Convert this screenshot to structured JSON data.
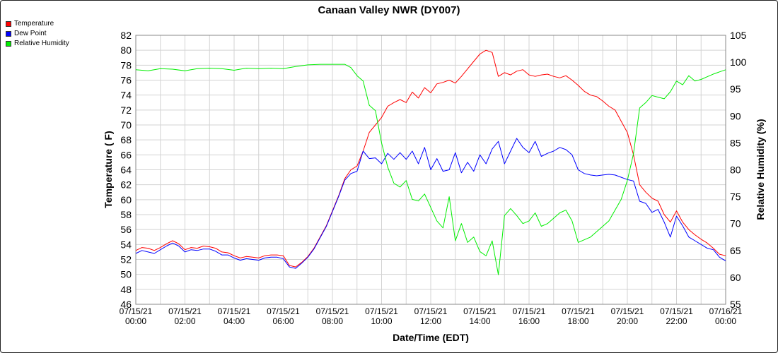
{
  "chart_data": {
    "type": "line",
    "title": "Canaan Valley NWR (DY007)",
    "xlabel": "Date/Time (EDT)",
    "ylabel_left": "Temperature ( F)",
    "ylabel_right": "Relative Humidity (%)",
    "ylim_left": [
      46,
      82
    ],
    "ylim_right": [
      55,
      105
    ],
    "xlim_hours": [
      0,
      24
    ],
    "grid": true,
    "legend_position": "top-left",
    "x_ticks": [
      {
        "hour": 0,
        "date": "07/15/21",
        "time": "00:00"
      },
      {
        "hour": 2,
        "date": "07/15/21",
        "time": "02:00"
      },
      {
        "hour": 4,
        "date": "07/15/21",
        "time": "04:00"
      },
      {
        "hour": 6,
        "date": "07/15/21",
        "time": "06:00"
      },
      {
        "hour": 8,
        "date": "07/15/21",
        "time": "08:00"
      },
      {
        "hour": 10,
        "date": "07/15/21",
        "time": "10:00"
      },
      {
        "hour": 12,
        "date": "07/15/21",
        "time": "12:00"
      },
      {
        "hour": 14,
        "date": "07/15/21",
        "time": "14:00"
      },
      {
        "hour": 16,
        "date": "07/15/21",
        "time": "16:00"
      },
      {
        "hour": 18,
        "date": "07/15/21",
        "time": "18:00"
      },
      {
        "hour": 20,
        "date": "07/15/21",
        "time": "20:00"
      },
      {
        "hour": 22,
        "date": "07/15/21",
        "time": "22:00"
      },
      {
        "hour": 24,
        "date": "07/16/21",
        "time": "00:00"
      }
    ],
    "y_ticks_left": [
      46,
      48,
      50,
      52,
      54,
      56,
      58,
      60,
      62,
      64,
      66,
      68,
      70,
      72,
      74,
      76,
      78,
      80,
      82
    ],
    "y_ticks_right": [
      55,
      60,
      65,
      70,
      75,
      80,
      85,
      90,
      95,
      100,
      105
    ],
    "series": [
      {
        "name": "Temperature",
        "color": "#ff0000",
        "axis": "left",
        "points": [
          [
            0,
            53.2
          ],
          [
            0.25,
            53.6
          ],
          [
            0.5,
            53.5
          ],
          [
            0.75,
            53.2
          ],
          [
            1.0,
            53.6
          ],
          [
            1.25,
            54.1
          ],
          [
            1.5,
            54.5
          ],
          [
            1.75,
            54.1
          ],
          [
            2.0,
            53.3
          ],
          [
            2.25,
            53.6
          ],
          [
            2.5,
            53.5
          ],
          [
            2.75,
            53.8
          ],
          [
            3.0,
            53.7
          ],
          [
            3.25,
            53.5
          ],
          [
            3.5,
            53.0
          ],
          [
            3.75,
            52.9
          ],
          [
            4.0,
            52.5
          ],
          [
            4.25,
            52.2
          ],
          [
            4.5,
            52.4
          ],
          [
            4.75,
            52.3
          ],
          [
            5.0,
            52.2
          ],
          [
            5.25,
            52.5
          ],
          [
            5.5,
            52.6
          ],
          [
            5.75,
            52.6
          ],
          [
            6.0,
            52.5
          ],
          [
            6.25,
            51.2
          ],
          [
            6.5,
            51.0
          ],
          [
            6.75,
            51.6
          ],
          [
            7.0,
            52.4
          ],
          [
            7.25,
            53.5
          ],
          [
            7.5,
            55.0
          ],
          [
            7.75,
            56.5
          ],
          [
            8.0,
            58.5
          ],
          [
            8.25,
            60.5
          ],
          [
            8.5,
            62.8
          ],
          [
            8.75,
            64.0
          ],
          [
            9.0,
            64.5
          ],
          [
            9.25,
            66.5
          ],
          [
            9.5,
            69.0
          ],
          [
            9.75,
            70.0
          ],
          [
            10.0,
            71.0
          ],
          [
            10.25,
            72.5
          ],
          [
            10.5,
            73.0
          ],
          [
            10.75,
            73.4
          ],
          [
            11.0,
            73.0
          ],
          [
            11.25,
            74.4
          ],
          [
            11.5,
            73.6
          ],
          [
            11.75,
            75.0
          ],
          [
            12.0,
            74.3
          ],
          [
            12.25,
            75.5
          ],
          [
            12.5,
            75.7
          ],
          [
            12.75,
            76.0
          ],
          [
            13.0,
            75.6
          ],
          [
            13.25,
            76.5
          ],
          [
            13.5,
            77.5
          ],
          [
            13.75,
            78.5
          ],
          [
            14.0,
            79.5
          ],
          [
            14.25,
            80.0
          ],
          [
            14.5,
            79.7
          ],
          [
            14.75,
            76.5
          ],
          [
            15.0,
            77.0
          ],
          [
            15.25,
            76.7
          ],
          [
            15.5,
            77.2
          ],
          [
            15.75,
            77.4
          ],
          [
            16.0,
            76.7
          ],
          [
            16.25,
            76.5
          ],
          [
            16.5,
            76.7
          ],
          [
            16.75,
            76.8
          ],
          [
            17.0,
            76.5
          ],
          [
            17.25,
            76.3
          ],
          [
            17.5,
            76.6
          ],
          [
            17.75,
            76.0
          ],
          [
            18.0,
            75.3
          ],
          [
            18.25,
            74.5
          ],
          [
            18.5,
            74.0
          ],
          [
            18.75,
            73.8
          ],
          [
            19.0,
            73.2
          ],
          [
            19.25,
            72.5
          ],
          [
            19.5,
            72.0
          ],
          [
            19.75,
            70.5
          ],
          [
            20.0,
            69.0
          ],
          [
            20.25,
            66.0
          ],
          [
            20.5,
            62.0
          ],
          [
            20.75,
            61.0
          ],
          [
            21.0,
            60.2
          ],
          [
            21.25,
            59.8
          ],
          [
            21.5,
            58.0
          ],
          [
            21.75,
            57.0
          ],
          [
            22.0,
            58.5
          ],
          [
            22.25,
            57.0
          ],
          [
            22.5,
            56.0
          ],
          [
            22.75,
            55.3
          ],
          [
            23.0,
            54.7
          ],
          [
            23.25,
            54.2
          ],
          [
            23.5,
            53.5
          ],
          [
            23.75,
            52.7
          ],
          [
            24.0,
            52.5
          ]
        ]
      },
      {
        "name": "Dew Point",
        "color": "#0000ff",
        "axis": "left",
        "points": [
          [
            0,
            52.8
          ],
          [
            0.25,
            53.2
          ],
          [
            0.5,
            53.0
          ],
          [
            0.75,
            52.8
          ],
          [
            1.0,
            53.3
          ],
          [
            1.25,
            53.8
          ],
          [
            1.5,
            54.2
          ],
          [
            1.75,
            53.8
          ],
          [
            2.0,
            53.0
          ],
          [
            2.25,
            53.3
          ],
          [
            2.5,
            53.2
          ],
          [
            2.75,
            53.4
          ],
          [
            3.0,
            53.4
          ],
          [
            3.25,
            53.1
          ],
          [
            3.5,
            52.6
          ],
          [
            3.75,
            52.6
          ],
          [
            4.0,
            52.2
          ],
          [
            4.25,
            51.9
          ],
          [
            4.5,
            52.1
          ],
          [
            4.75,
            52.0
          ],
          [
            5.0,
            51.9
          ],
          [
            5.25,
            52.2
          ],
          [
            5.5,
            52.3
          ],
          [
            5.75,
            52.3
          ],
          [
            6.0,
            52.1
          ],
          [
            6.25,
            51.0
          ],
          [
            6.5,
            50.8
          ],
          [
            6.75,
            51.5
          ],
          [
            7.0,
            52.3
          ],
          [
            7.25,
            53.4
          ],
          [
            7.5,
            54.9
          ],
          [
            7.75,
            56.4
          ],
          [
            8.0,
            58.4
          ],
          [
            8.25,
            60.4
          ],
          [
            8.5,
            62.6
          ],
          [
            8.75,
            63.5
          ],
          [
            9.0,
            63.8
          ],
          [
            9.25,
            66.5
          ],
          [
            9.5,
            65.5
          ],
          [
            9.75,
            65.6
          ],
          [
            10.0,
            64.8
          ],
          [
            10.25,
            66.2
          ],
          [
            10.5,
            65.4
          ],
          [
            10.75,
            66.3
          ],
          [
            11.0,
            65.4
          ],
          [
            11.25,
            66.5
          ],
          [
            11.5,
            64.8
          ],
          [
            11.75,
            67.0
          ],
          [
            12.0,
            64.0
          ],
          [
            12.25,
            65.5
          ],
          [
            12.5,
            63.8
          ],
          [
            12.75,
            64.0
          ],
          [
            13.0,
            66.3
          ],
          [
            13.25,
            63.6
          ],
          [
            13.5,
            65.0
          ],
          [
            13.75,
            63.8
          ],
          [
            14.0,
            66.0
          ],
          [
            14.25,
            64.8
          ],
          [
            14.5,
            66.8
          ],
          [
            14.75,
            67.8
          ],
          [
            15.0,
            64.8
          ],
          [
            15.25,
            66.5
          ],
          [
            15.5,
            68.2
          ],
          [
            15.75,
            67.0
          ],
          [
            16.0,
            66.3
          ],
          [
            16.25,
            67.8
          ],
          [
            16.5,
            65.8
          ],
          [
            16.75,
            66.2
          ],
          [
            17.0,
            66.5
          ],
          [
            17.25,
            67.0
          ],
          [
            17.5,
            66.7
          ],
          [
            17.75,
            66.0
          ],
          [
            18.0,
            64.0
          ],
          [
            18.25,
            63.5
          ],
          [
            18.5,
            63.3
          ],
          [
            18.75,
            63.2
          ],
          [
            19.0,
            63.3
          ],
          [
            19.25,
            63.4
          ],
          [
            19.5,
            63.3
          ],
          [
            19.75,
            63.0
          ],
          [
            20.0,
            62.7
          ],
          [
            20.25,
            62.5
          ],
          [
            20.5,
            59.8
          ],
          [
            20.75,
            59.5
          ],
          [
            21.0,
            58.3
          ],
          [
            21.25,
            58.7
          ],
          [
            21.5,
            57.0
          ],
          [
            21.75,
            55.0
          ],
          [
            22.0,
            57.8
          ],
          [
            22.25,
            56.5
          ],
          [
            22.5,
            55.0
          ],
          [
            22.75,
            54.5
          ],
          [
            23.0,
            54.0
          ],
          [
            23.25,
            53.5
          ],
          [
            23.5,
            53.3
          ],
          [
            23.75,
            52.3
          ],
          [
            24.0,
            51.8
          ]
        ]
      },
      {
        "name": "Relative Humidity",
        "color": "#00ee00",
        "axis": "right",
        "points": [
          [
            0,
            98.6
          ],
          [
            0.5,
            98.4
          ],
          [
            1.0,
            98.8
          ],
          [
            1.5,
            98.7
          ],
          [
            2.0,
            98.4
          ],
          [
            2.5,
            98.8
          ],
          [
            3.0,
            98.9
          ],
          [
            3.5,
            98.8
          ],
          [
            4.0,
            98.5
          ],
          [
            4.5,
            98.9
          ],
          [
            5.0,
            98.8
          ],
          [
            5.5,
            98.9
          ],
          [
            6.0,
            98.8
          ],
          [
            6.5,
            99.2
          ],
          [
            7.0,
            99.5
          ],
          [
            7.5,
            99.6
          ],
          [
            8.0,
            99.6
          ],
          [
            8.5,
            99.6
          ],
          [
            8.75,
            99.0
          ],
          [
            9.0,
            97.5
          ],
          [
            9.25,
            96.5
          ],
          [
            9.5,
            92.0
          ],
          [
            9.75,
            91.0
          ],
          [
            10.0,
            85.0
          ],
          [
            10.25,
            80.5
          ],
          [
            10.5,
            77.5
          ],
          [
            10.75,
            76.8
          ],
          [
            11.0,
            78.0
          ],
          [
            11.25,
            74.5
          ],
          [
            11.5,
            74.2
          ],
          [
            11.75,
            75.5
          ],
          [
            12.0,
            73.0
          ],
          [
            12.25,
            70.5
          ],
          [
            12.5,
            69.2
          ],
          [
            12.75,
            75.0
          ],
          [
            13.0,
            66.8
          ],
          [
            13.25,
            70.0
          ],
          [
            13.5,
            66.5
          ],
          [
            13.75,
            67.5
          ],
          [
            14.0,
            64.8
          ],
          [
            14.25,
            64.0
          ],
          [
            14.5,
            66.8
          ],
          [
            14.75,
            60.5
          ],
          [
            15.0,
            71.5
          ],
          [
            15.25,
            72.8
          ],
          [
            15.5,
            71.5
          ],
          [
            15.75,
            70.0
          ],
          [
            16.0,
            70.5
          ],
          [
            16.25,
            72.0
          ],
          [
            16.5,
            69.5
          ],
          [
            16.75,
            70.0
          ],
          [
            17.0,
            71.0
          ],
          [
            17.25,
            72.0
          ],
          [
            17.5,
            72.5
          ],
          [
            17.75,
            70.5
          ],
          [
            18.0,
            66.5
          ],
          [
            18.25,
            67.0
          ],
          [
            18.5,
            67.5
          ],
          [
            18.75,
            68.5
          ],
          [
            19.0,
            69.5
          ],
          [
            19.25,
            70.5
          ],
          [
            19.5,
            72.5
          ],
          [
            19.75,
            74.5
          ],
          [
            20.0,
            78.0
          ],
          [
            20.25,
            83.0
          ],
          [
            20.5,
            91.5
          ],
          [
            20.75,
            92.5
          ],
          [
            21.0,
            93.8
          ],
          [
            21.25,
            93.5
          ],
          [
            21.5,
            93.2
          ],
          [
            21.75,
            94.5
          ],
          [
            22.0,
            96.5
          ],
          [
            22.25,
            95.8
          ],
          [
            22.5,
            97.5
          ],
          [
            22.75,
            96.5
          ],
          [
            23.0,
            96.8
          ],
          [
            23.25,
            97.3
          ],
          [
            23.5,
            97.8
          ],
          [
            23.75,
            98.2
          ],
          [
            24.0,
            98.6
          ]
        ]
      }
    ]
  }
}
